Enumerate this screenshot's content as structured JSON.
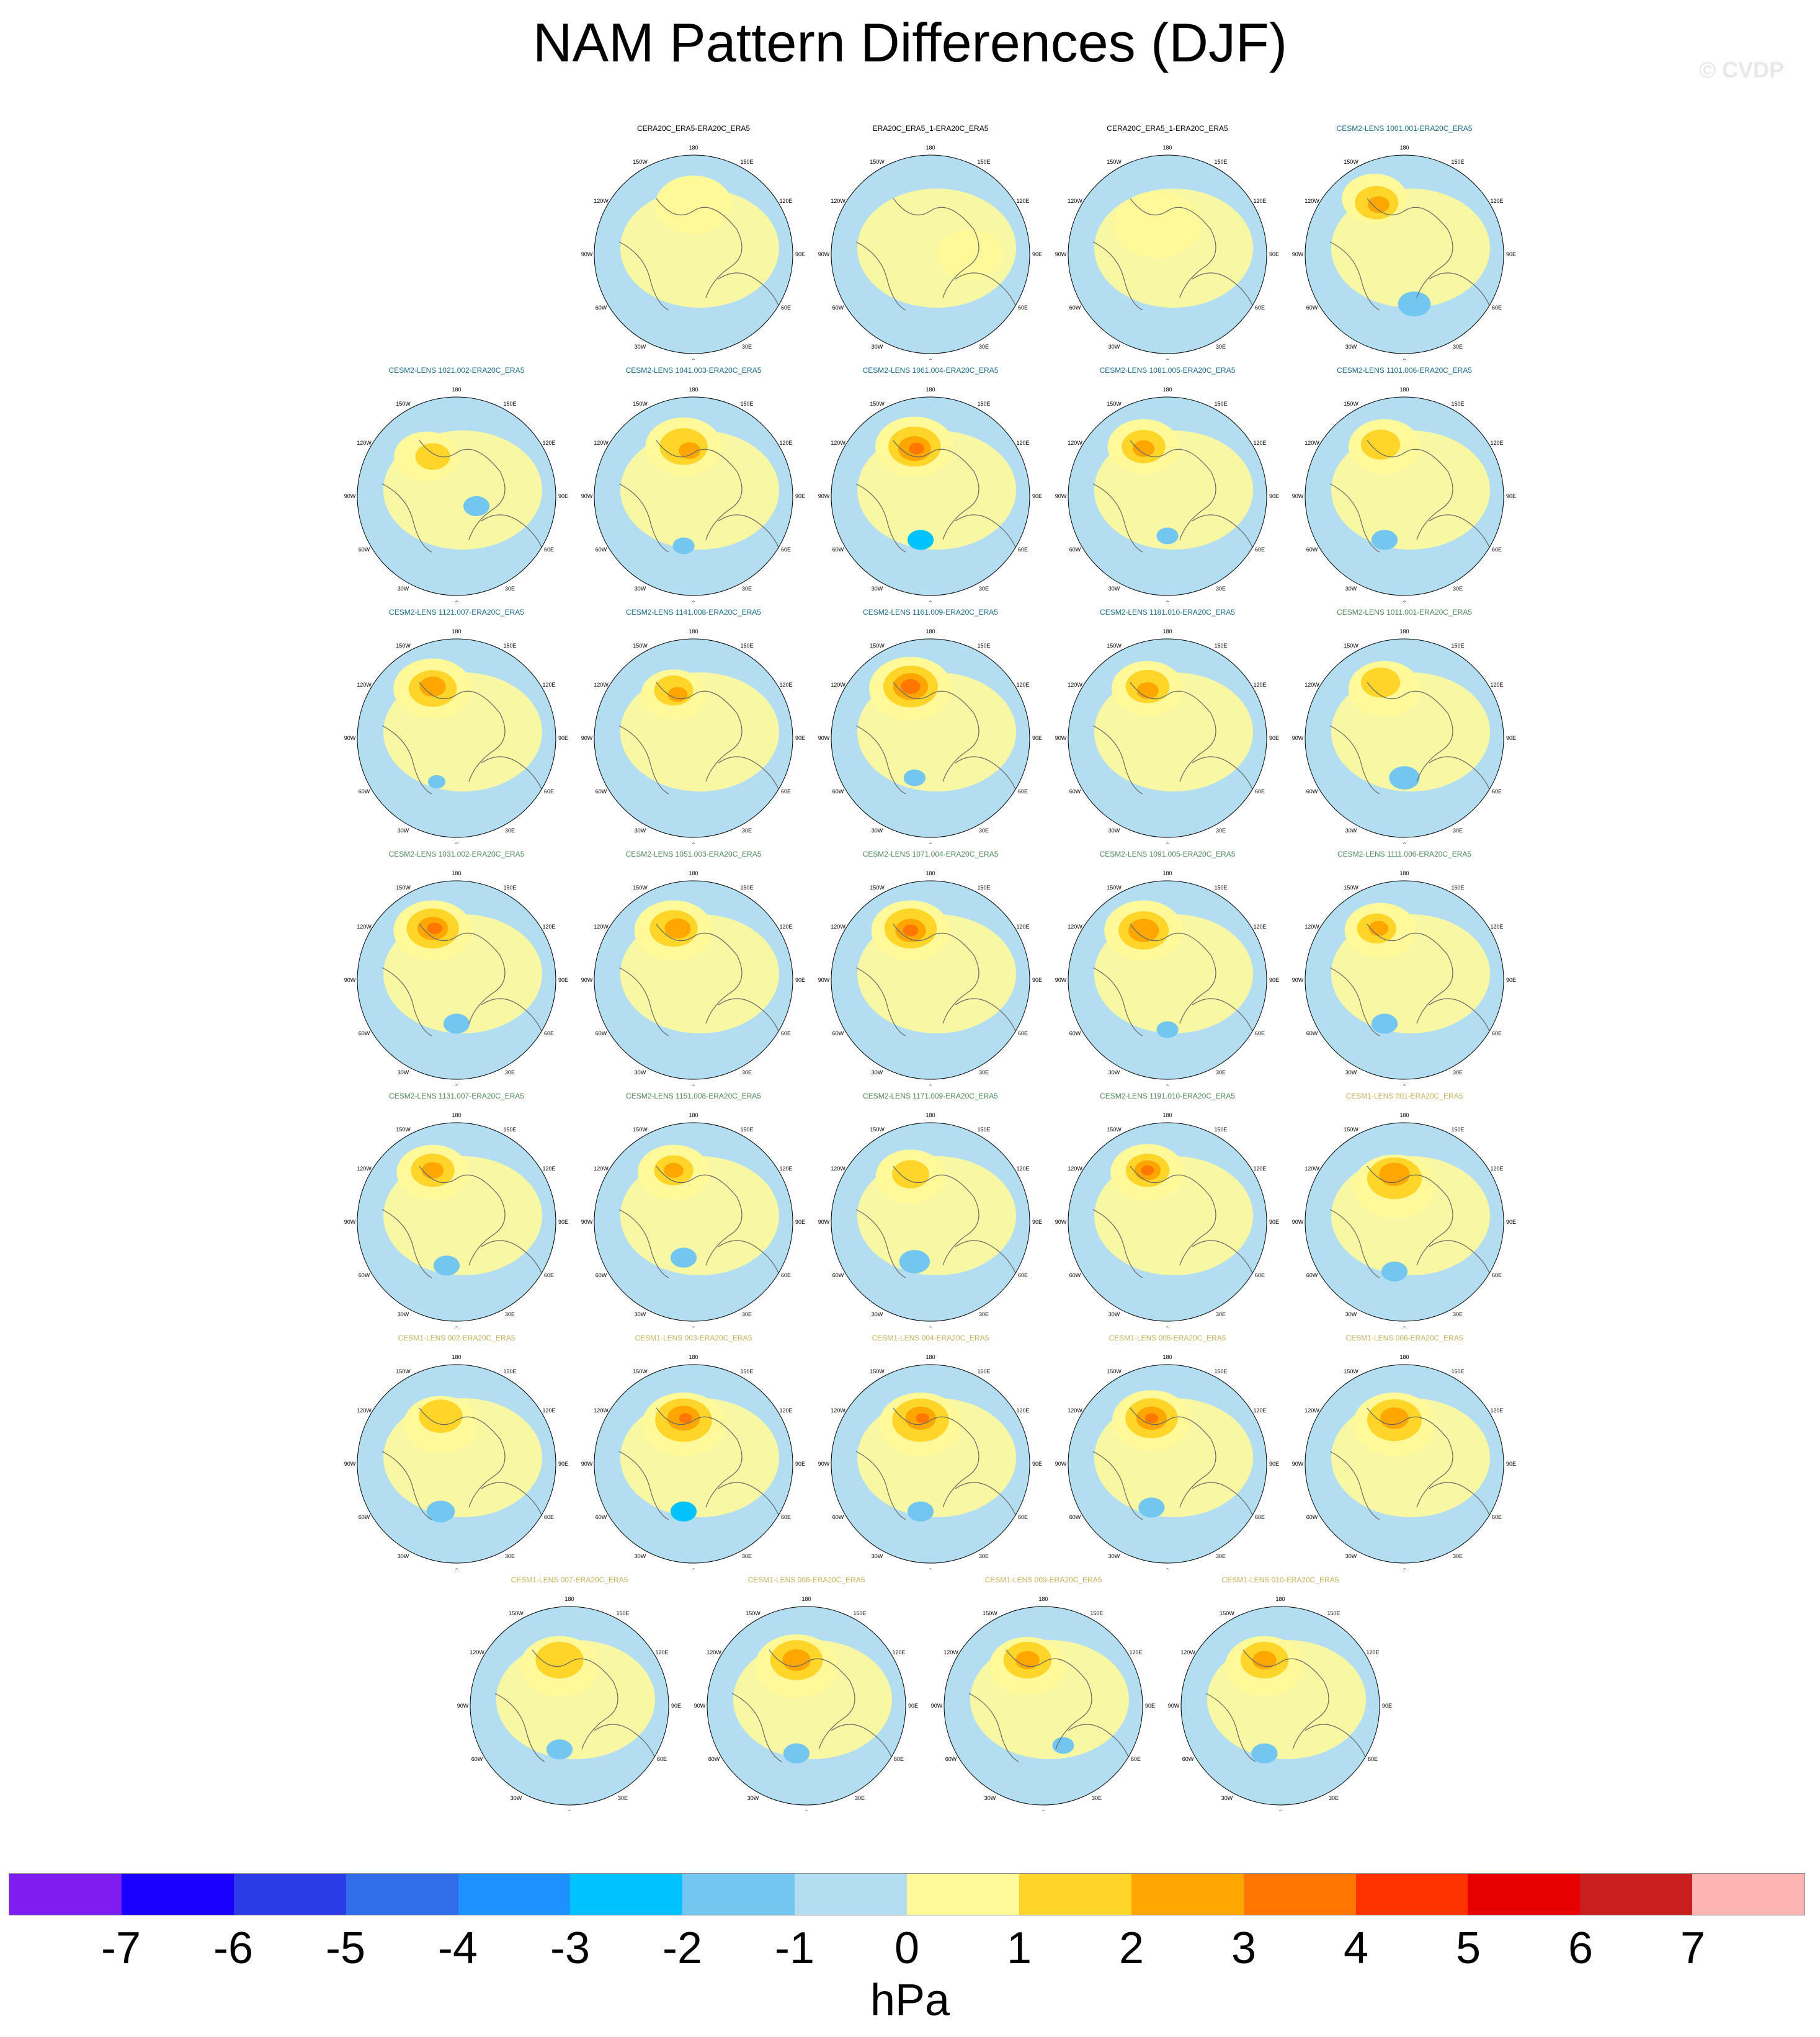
{
  "title": "NAM Pattern Differences (DJF)",
  "watermark": "© CVDP",
  "longitude_labels": [
    "180",
    "150E",
    "120E",
    "90E",
    "60E",
    "30E",
    "0",
    "30W",
    "60W",
    "90W",
    "120W",
    "150W"
  ],
  "title_colors": {
    "obs": "#000000",
    "cesm2_a": "#1a6b8a",
    "cesm2_b": "#4e8a5a",
    "cesm1": "#c8b060"
  },
  "panels": [
    {
      "title": "CERA20C_ERA5-ERA20C_ERA5",
      "group": "obs",
      "row": 0,
      "col": 1,
      "blobs": [
        [
          0.5,
          0.25,
          0.35,
          1
        ]
      ]
    },
    {
      "title": "ERA20C_ERA5_1-ERA20C_ERA5",
      "group": "obs",
      "row": 0,
      "col": 2,
      "blobs": [
        [
          0.7,
          0.5,
          0.3,
          1
        ]
      ]
    },
    {
      "title": "CERA20C_ERA5_1-ERA20C_ERA5",
      "group": "obs",
      "row": 0,
      "col": 3,
      "blobs": [
        [
          0.45,
          0.35,
          0.4,
          1
        ]
      ]
    },
    {
      "title": "CESM2-LENS 1001.001-ERA20C_ERA5",
      "group": "cesm2_a",
      "row": 0,
      "col": 4,
      "blobs": [
        [
          0.35,
          0.22,
          0.3,
          1
        ],
        [
          0.36,
          0.24,
          0.2,
          2
        ],
        [
          0.37,
          0.25,
          0.1,
          3
        ],
        [
          0.55,
          0.75,
          0.15,
          -1
        ]
      ]
    },
    {
      "title": "CESM2-LENS 1021.002-ERA20C_ERA5",
      "group": "cesm2_a",
      "row": 1,
      "col": 0,
      "blobs": [
        [
          0.35,
          0.3,
          0.3,
          1
        ],
        [
          0.38,
          0.3,
          0.16,
          2
        ],
        [
          0.6,
          0.55,
          0.12,
          -1
        ]
      ]
    },
    {
      "title": "CESM2-LENS 1041.003-ERA20C_ERA5",
      "group": "cesm2_a",
      "row": 1,
      "col": 1,
      "blobs": [
        [
          0.45,
          0.25,
          0.35,
          1
        ],
        [
          0.45,
          0.25,
          0.22,
          2
        ],
        [
          0.48,
          0.27,
          0.1,
          3
        ],
        [
          0.45,
          0.75,
          0.1,
          -1
        ]
      ]
    },
    {
      "title": "CESM2-LENS 1061.004-ERA20C_ERA5",
      "group": "cesm2_a",
      "row": 1,
      "col": 2,
      "blobs": [
        [
          0.42,
          0.25,
          0.36,
          1
        ],
        [
          0.42,
          0.25,
          0.24,
          2
        ],
        [
          0.42,
          0.26,
          0.15,
          3
        ],
        [
          0.43,
          0.26,
          0.07,
          4
        ],
        [
          0.45,
          0.72,
          0.12,
          -2
        ]
      ]
    },
    {
      "title": "CESM2-LENS 1081.005-ERA20C_ERA5",
      "group": "cesm2_a",
      "row": 1,
      "col": 3,
      "blobs": [
        [
          0.38,
          0.25,
          0.33,
          1
        ],
        [
          0.38,
          0.25,
          0.2,
          2
        ],
        [
          0.38,
          0.26,
          0.1,
          3
        ],
        [
          0.5,
          0.7,
          0.1,
          -1
        ]
      ]
    },
    {
      "title": "CESM2-LENS 1101.006-ERA20C_ERA5",
      "group": "cesm2_a",
      "row": 1,
      "col": 4,
      "blobs": [
        [
          0.4,
          0.25,
          0.33,
          1
        ],
        [
          0.38,
          0.24,
          0.18,
          2
        ],
        [
          0.4,
          0.72,
          0.12,
          -1
        ]
      ]
    },
    {
      "title": "CESM2-LENS 1121.007-ERA20C_ERA5",
      "group": "cesm2_a",
      "row": 2,
      "col": 0,
      "blobs": [
        [
          0.38,
          0.25,
          0.36,
          1
        ],
        [
          0.38,
          0.25,
          0.22,
          2
        ],
        [
          0.38,
          0.24,
          0.12,
          3
        ],
        [
          0.4,
          0.72,
          0.08,
          -1
        ]
      ]
    },
    {
      "title": "CESM2-LENS 1141.008-ERA20C_ERA5",
      "group": "cesm2_a",
      "row": 2,
      "col": 1,
      "blobs": [
        [
          0.4,
          0.28,
          0.3,
          1
        ],
        [
          0.4,
          0.26,
          0.18,
          2
        ],
        [
          0.42,
          0.28,
          0.09,
          3
        ]
      ]
    },
    {
      "title": "CESM2-LENS 1161.009-ERA20C_ERA5",
      "group": "cesm2_a",
      "row": 2,
      "col": 2,
      "blobs": [
        [
          0.4,
          0.25,
          0.38,
          1
        ],
        [
          0.4,
          0.24,
          0.25,
          2
        ],
        [
          0.4,
          0.24,
          0.16,
          3
        ],
        [
          0.4,
          0.24,
          0.09,
          4
        ],
        [
          0.42,
          0.7,
          0.1,
          -1
        ]
      ]
    },
    {
      "title": "CESM2-LENS 1181.010-ERA20C_ERA5",
      "group": "cesm2_a",
      "row": 2,
      "col": 3,
      "blobs": [
        [
          0.4,
          0.25,
          0.33,
          1
        ],
        [
          0.4,
          0.24,
          0.2,
          2
        ],
        [
          0.4,
          0.26,
          0.1,
          3
        ]
      ]
    },
    {
      "title": "CESM2-LENS 1011.001-ERA20C_ERA5",
      "group": "cesm2_b",
      "row": 2,
      "col": 4,
      "blobs": [
        [
          0.4,
          0.25,
          0.33,
          1
        ],
        [
          0.38,
          0.22,
          0.18,
          2
        ],
        [
          0.5,
          0.7,
          0.14,
          -1
        ]
      ]
    },
    {
      "title": "CESM2-LENS 1031.002-ERA20C_ERA5",
      "group": "cesm2_b",
      "row": 3,
      "col": 0,
      "blobs": [
        [
          0.38,
          0.25,
          0.36,
          1
        ],
        [
          0.38,
          0.24,
          0.24,
          2
        ],
        [
          0.38,
          0.24,
          0.14,
          3
        ],
        [
          0.39,
          0.24,
          0.07,
          4
        ],
        [
          0.5,
          0.72,
          0.12,
          -1
        ]
      ]
    },
    {
      "title": "CESM2-LENS 1051.003-ERA20C_ERA5",
      "group": "cesm2_b",
      "row": 3,
      "col": 1,
      "blobs": [
        [
          0.4,
          0.25,
          0.36,
          1
        ],
        [
          0.4,
          0.24,
          0.22,
          2
        ],
        [
          0.42,
          0.24,
          0.12,
          3
        ]
      ]
    },
    {
      "title": "CESM2-LENS 1071.004-ERA20C_ERA5",
      "group": "cesm2_b",
      "row": 3,
      "col": 2,
      "blobs": [
        [
          0.4,
          0.25,
          0.36,
          1
        ],
        [
          0.4,
          0.24,
          0.24,
          2
        ],
        [
          0.4,
          0.25,
          0.14,
          3
        ],
        [
          0.4,
          0.25,
          0.07,
          4
        ]
      ]
    },
    {
      "title": "CESM2-LENS 1091.005-ERA20C_ERA5",
      "group": "cesm2_b",
      "row": 3,
      "col": 3,
      "blobs": [
        [
          0.38,
          0.25,
          0.36,
          1
        ],
        [
          0.38,
          0.25,
          0.23,
          2
        ],
        [
          0.38,
          0.25,
          0.14,
          3
        ],
        [
          0.5,
          0.75,
          0.1,
          -1
        ]
      ]
    },
    {
      "title": "CESM2-LENS 1111.006-ERA20C_ERA5",
      "group": "cesm2_b",
      "row": 3,
      "col": 4,
      "blobs": [
        [
          0.38,
          0.25,
          0.33,
          1
        ],
        [
          0.36,
          0.24,
          0.18,
          2
        ],
        [
          0.37,
          0.24,
          0.09,
          3
        ],
        [
          0.4,
          0.72,
          0.12,
          -1
        ]
      ]
    },
    {
      "title": "CESM2-LENS 1131.007-ERA20C_ERA5",
      "group": "cesm2_b",
      "row": 4,
      "col": 0,
      "blobs": [
        [
          0.38,
          0.25,
          0.33,
          1
        ],
        [
          0.38,
          0.24,
          0.2,
          2
        ],
        [
          0.38,
          0.24,
          0.1,
          3
        ],
        [
          0.45,
          0.72,
          0.12,
          -1
        ]
      ]
    },
    {
      "title": "CESM2-LENS 1151.008-ERA20C_ERA5",
      "group": "cesm2_b",
      "row": 4,
      "col": 1,
      "blobs": [
        [
          0.4,
          0.25,
          0.33,
          1
        ],
        [
          0.4,
          0.24,
          0.18,
          2
        ],
        [
          0.4,
          0.24,
          0.09,
          3
        ],
        [
          0.45,
          0.68,
          0.12,
          -1
        ]
      ]
    },
    {
      "title": "CESM2-LENS 1171.009-ERA20C_ERA5",
      "group": "cesm2_b",
      "row": 4,
      "col": 2,
      "blobs": [
        [
          0.4,
          0.27,
          0.32,
          1
        ],
        [
          0.4,
          0.26,
          0.17,
          2
        ],
        [
          0.42,
          0.7,
          0.14,
          -1
        ]
      ]
    },
    {
      "title": "CESM2-LENS 1191.010-ERA20C_ERA5",
      "group": "cesm2_b",
      "row": 4,
      "col": 3,
      "blobs": [
        [
          0.4,
          0.25,
          0.34,
          1
        ],
        [
          0.4,
          0.24,
          0.2,
          2
        ],
        [
          0.4,
          0.24,
          0.12,
          3
        ],
        [
          0.4,
          0.24,
          0.06,
          4
        ]
      ]
    },
    {
      "title": "CESM1-LENS 001-ERA20C_ERA5",
      "group": "cesm1",
      "row": 4,
      "col": 4,
      "blobs": [
        [
          0.45,
          0.32,
          0.38,
          1
        ],
        [
          0.45,
          0.28,
          0.25,
          2
        ],
        [
          0.45,
          0.26,
          0.14,
          3
        ],
        [
          0.45,
          0.75,
          0.12,
          -1
        ]
      ]
    },
    {
      "title": "CESM1-LENS 002-ERA20C_ERA5",
      "group": "cesm1",
      "row": 5,
      "col": 0,
      "blobs": [
        [
          0.42,
          0.3,
          0.34,
          1
        ],
        [
          0.42,
          0.26,
          0.2,
          2
        ],
        [
          0.42,
          0.74,
          0.13,
          -1
        ]
      ]
    },
    {
      "title": "CESM1-LENS 003-ERA20C_ERA5",
      "group": "cesm1",
      "row": 5,
      "col": 1,
      "blobs": [
        [
          0.45,
          0.3,
          0.38,
          1
        ],
        [
          0.45,
          0.28,
          0.26,
          2
        ],
        [
          0.45,
          0.27,
          0.15,
          3
        ],
        [
          0.46,
          0.27,
          0.06,
          4
        ],
        [
          0.45,
          0.74,
          0.12,
          -2
        ]
      ]
    },
    {
      "title": "CESM1-LENS 004-ERA20C_ERA5",
      "group": "cesm1",
      "row": 5,
      "col": 2,
      "blobs": [
        [
          0.45,
          0.3,
          0.38,
          1
        ],
        [
          0.45,
          0.28,
          0.26,
          2
        ],
        [
          0.45,
          0.27,
          0.14,
          3
        ],
        [
          0.46,
          0.27,
          0.06,
          4
        ],
        [
          0.45,
          0.74,
          0.12,
          -1
        ]
      ]
    },
    {
      "title": "CESM1-LENS 005-ERA20C_ERA5",
      "group": "cesm1",
      "row": 5,
      "col": 3,
      "blobs": [
        [
          0.42,
          0.28,
          0.36,
          1
        ],
        [
          0.42,
          0.27,
          0.24,
          2
        ],
        [
          0.42,
          0.27,
          0.14,
          3
        ],
        [
          0.42,
          0.27,
          0.06,
          4
        ],
        [
          0.42,
          0.72,
          0.12,
          -1
        ]
      ]
    },
    {
      "title": "CESM1-LENS 006-ERA20C_ERA5",
      "group": "cesm1",
      "row": 5,
      "col": 4,
      "blobs": [
        [
          0.45,
          0.3,
          0.38,
          1
        ],
        [
          0.45,
          0.28,
          0.25,
          2
        ],
        [
          0.45,
          0.27,
          0.13,
          3
        ]
      ]
    },
    {
      "title": "CESM1-LENS 007-ERA20C_ERA5",
      "group": "cesm1",
      "row": 6,
      "col": 0,
      "blobs": [
        [
          0.45,
          0.3,
          0.36,
          1
        ],
        [
          0.45,
          0.27,
          0.22,
          2
        ],
        [
          0.45,
          0.72,
          0.12,
          -1
        ]
      ]
    },
    {
      "title": "CESM1-LENS 008-ERA20C_ERA5",
      "group": "cesm1",
      "row": 6,
      "col": 1,
      "blobs": [
        [
          0.45,
          0.3,
          0.38,
          1
        ],
        [
          0.45,
          0.27,
          0.24,
          2
        ],
        [
          0.45,
          0.27,
          0.13,
          3
        ],
        [
          0.45,
          0.74,
          0.12,
          -1
        ]
      ]
    },
    {
      "title": "CESM1-LENS 009-ERA20C_ERA5",
      "group": "cesm1",
      "row": 6,
      "col": 2,
      "blobs": [
        [
          0.42,
          0.3,
          0.35,
          1
        ],
        [
          0.42,
          0.27,
          0.22,
          2
        ],
        [
          0.42,
          0.27,
          0.11,
          3
        ],
        [
          0.6,
          0.7,
          0.1,
          -1
        ]
      ]
    },
    {
      "title": "CESM1-LENS 010-ERA20C_ERA5",
      "group": "cesm1",
      "row": 6,
      "col": 3,
      "blobs": [
        [
          0.42,
          0.3,
          0.36,
          1
        ],
        [
          0.42,
          0.27,
          0.22,
          2
        ],
        [
          0.42,
          0.27,
          0.11,
          3
        ],
        [
          0.42,
          0.74,
          0.12,
          -1
        ]
      ]
    }
  ],
  "colorbar": {
    "colors": [
      "#7d1df0",
      "#1a00ff",
      "#2b3be6",
      "#2f6ee8",
      "#1e90ff",
      "#00c2ff",
      "#73c6ef",
      "#b3def2",
      "#fff99a",
      "#ffd52a",
      "#ffa700",
      "#ff7700",
      "#ff3300",
      "#e60000",
      "#c81e1e",
      "#ffb4b4"
    ],
    "tick_labels": [
      "-7",
      "-6",
      "-5",
      "-4",
      "-3",
      "-2",
      "-1",
      "0",
      "1",
      "2",
      "3",
      "4",
      "5",
      "6",
      "7"
    ],
    "units": "hPa"
  }
}
